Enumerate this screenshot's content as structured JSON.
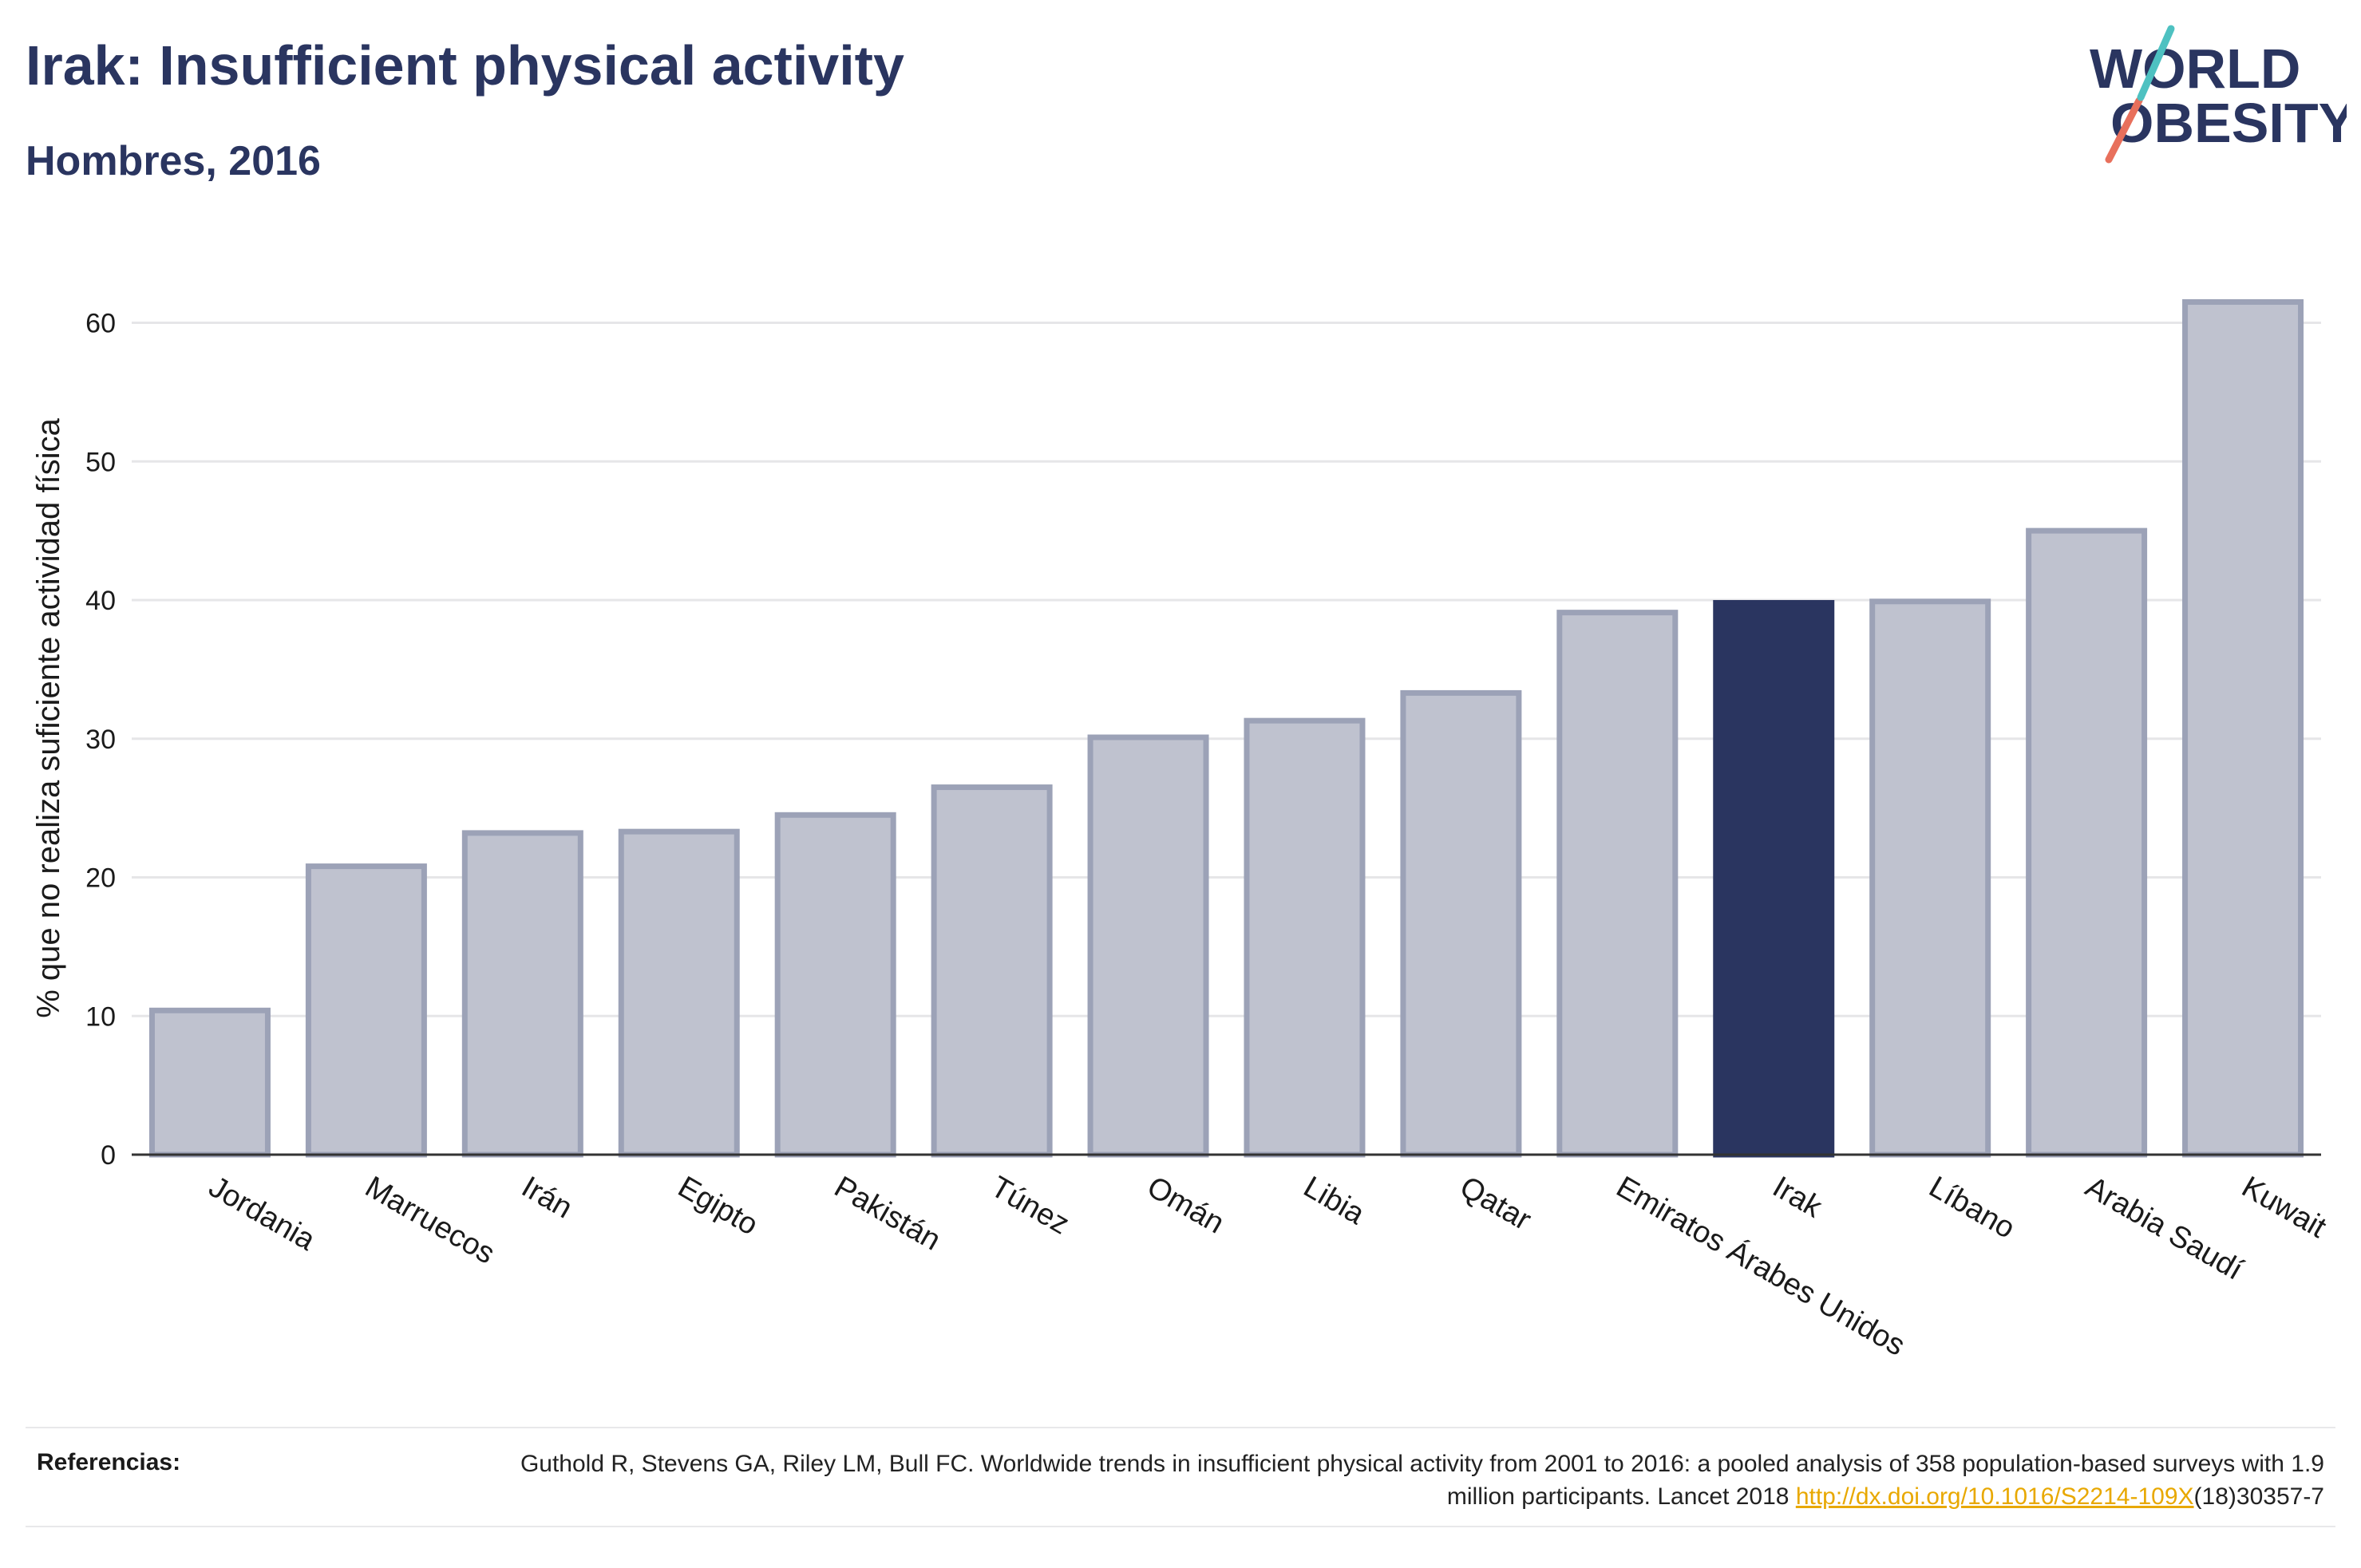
{
  "chart_data": {
    "type": "bar",
    "title": "Irak: Insufficient physical activity",
    "subtitle": "Hombres, 2016",
    "ylabel": "% que no realiza suficiente actividad física",
    "xlabel": "",
    "categories": [
      "Jordania",
      "Marruecos",
      "Irán",
      "Egipto",
      "Pakistán",
      "Túnez",
      "Omán",
      "Libia",
      "Qatar",
      "Emiratos Árabes Unidos",
      "Irak",
      "Líbano",
      "Arabia Saudí",
      "Kuwait"
    ],
    "values": [
      10.4,
      20.8,
      23.2,
      23.3,
      24.5,
      26.5,
      30.1,
      31.3,
      33.3,
      39.1,
      39.8,
      39.9,
      45.0,
      61.5
    ],
    "highlight": "Irak",
    "ylim": [
      0,
      64
    ],
    "yticks": [
      0,
      10,
      20,
      30,
      40,
      50,
      60
    ],
    "grid": true,
    "colors": {
      "bar": "#bfc2cf",
      "bar_edge": "#9ca2b7",
      "highlight": "#2a3560",
      "grid": "#e6e6e8",
      "axis": "#333333"
    }
  },
  "logo": {
    "line1": "WORLD",
    "line2": "OBESITY"
  },
  "footer": {
    "label": "Referencias:",
    "text_before": "Guthold R, Stevens GA, Riley LM, Bull FC. Worldwide trends in insufficient physical activity from 2001 to 2016: a pooled analysis of 358 population-based surveys with 1.9 million participants. Lancet 2018 ",
    "link": "http://dx.doi.org/10.1016/S2214-109X",
    "text_after": "(18)30357-7"
  }
}
